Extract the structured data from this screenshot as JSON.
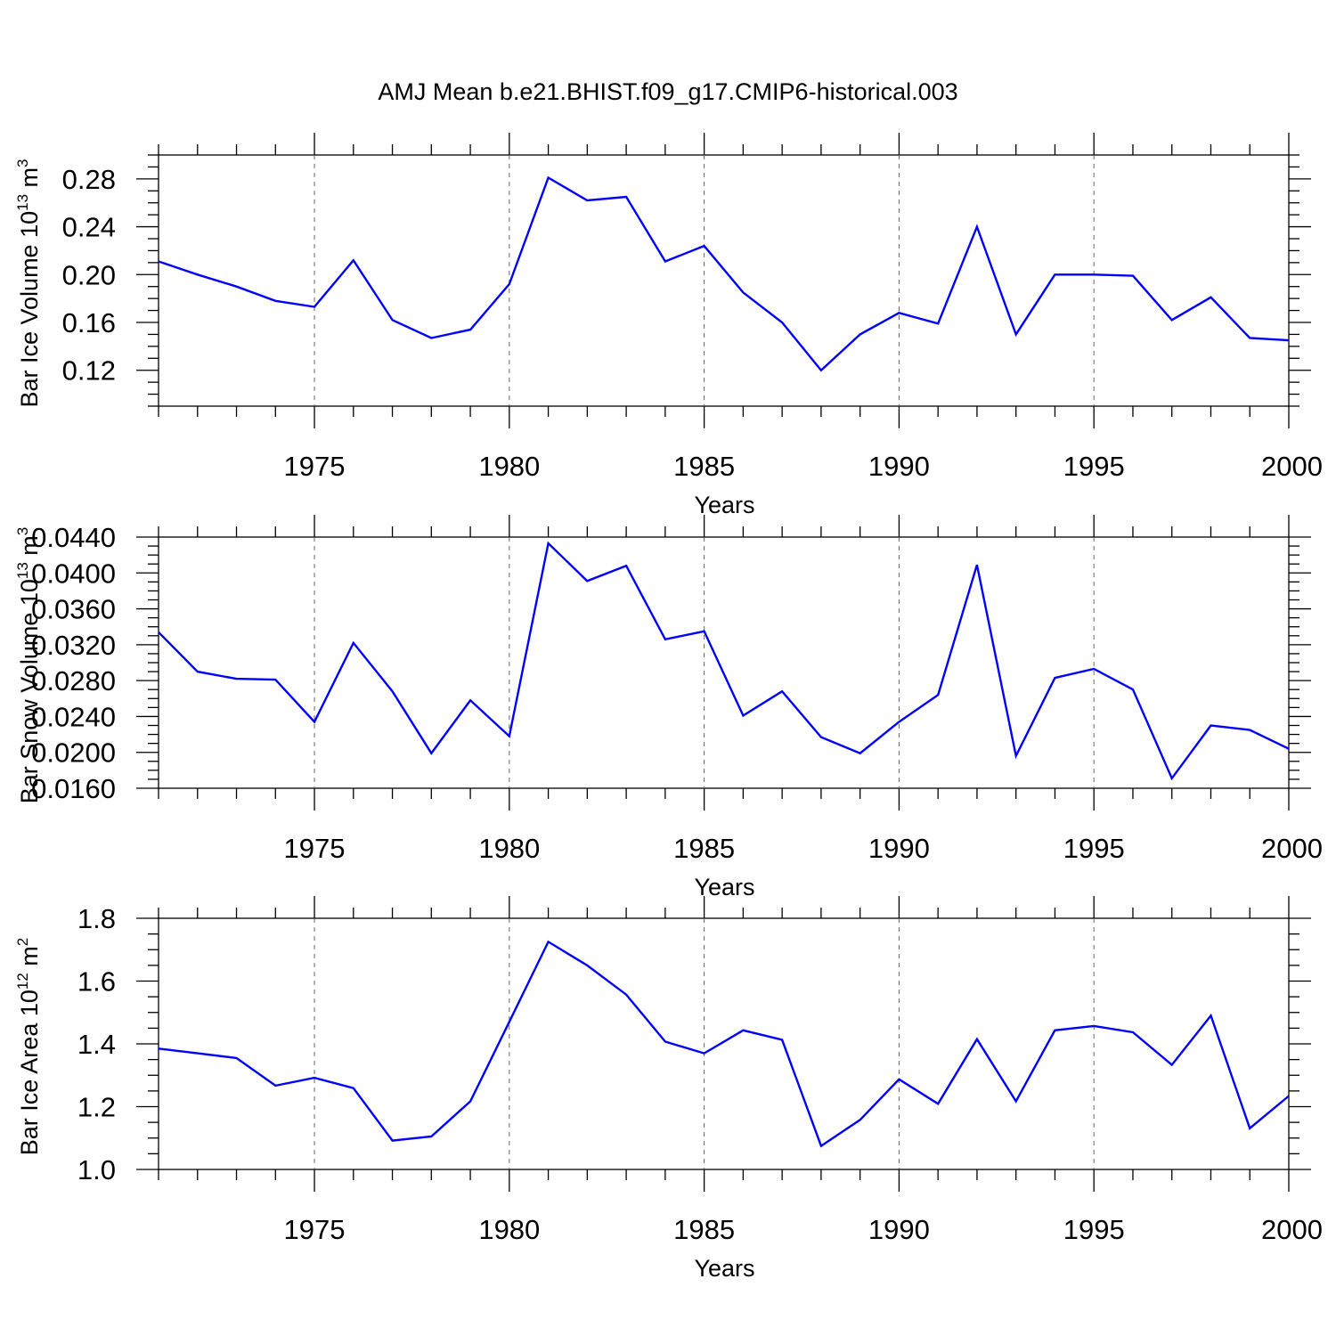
{
  "title": "AMJ Mean b.e21.BHIST.f09_g17.CMIP6-historical.003",
  "chart_data": [
    {
      "type": "line",
      "title": "",
      "xlabel": "Years",
      "ylabel": "Bar Ice Volume 10",
      "ylabel_exp": "13",
      "ylabel_unit": "m",
      "ylabel_unit_exp": "3",
      "xlim": [
        1971,
        2000
      ],
      "ylim": [
        0.09,
        0.3
      ],
      "xticks": [
        1975,
        1980,
        1985,
        1990,
        1995,
        2000
      ],
      "xtick_labels": [
        "1975",
        "1980",
        "1985",
        "1990",
        "1995",
        "2000"
      ],
      "yticks": [
        0.12,
        0.16,
        0.2,
        0.24,
        0.28
      ],
      "ytick_labels": [
        "0.12",
        "0.16",
        "0.20",
        "0.24",
        "0.28"
      ],
      "series": [
        {
          "name": "Bar Ice Volume",
          "color": "#0000ff",
          "x": [
            1971,
            1972,
            1973,
            1974,
            1975,
            1976,
            1977,
            1978,
            1979,
            1980,
            1981,
            1982,
            1983,
            1984,
            1985,
            1986,
            1987,
            1988,
            1989,
            1990,
            1991,
            1992,
            1993,
            1994,
            1995,
            1996,
            1997,
            1998,
            1999,
            2000
          ],
          "values": [
            0.211,
            0.2,
            0.19,
            0.178,
            0.173,
            0.212,
            0.162,
            0.147,
            0.154,
            0.192,
            0.281,
            0.262,
            0.265,
            0.211,
            0.224,
            0.185,
            0.16,
            0.12,
            0.15,
            0.168,
            0.159,
            0.24,
            0.15,
            0.2,
            0.2,
            0.199,
            0.162,
            0.181,
            0.147,
            0.145
          ]
        }
      ]
    },
    {
      "type": "line",
      "title": "",
      "xlabel": "Years",
      "ylabel": "Bar Snow Volume 10",
      "ylabel_exp": "13",
      "ylabel_unit": "m",
      "ylabel_unit_exp": "3",
      "xlim": [
        1971,
        2000
      ],
      "ylim": [
        0.016,
        0.044
      ],
      "xticks": [
        1975,
        1980,
        1985,
        1990,
        1995,
        2000
      ],
      "xtick_labels": [
        "1975",
        "1980",
        "1985",
        "1990",
        "1995",
        "2000"
      ],
      "yticks": [
        0.016,
        0.02,
        0.024,
        0.028,
        0.032,
        0.036,
        0.04,
        0.044
      ],
      "ytick_labels": [
        "0.0160",
        "0.0200",
        "0.0240",
        "0.0280",
        "0.0320",
        "0.0360",
        "0.0400",
        "0.0440"
      ],
      "series": [
        {
          "name": "Bar Snow Volume",
          "color": "#0000ff",
          "x": [
            1971,
            1972,
            1973,
            1974,
            1975,
            1976,
            1977,
            1978,
            1979,
            1980,
            1981,
            1982,
            1983,
            1984,
            1985,
            1986,
            1987,
            1988,
            1989,
            1990,
            1991,
            1992,
            1993,
            1994,
            1995,
            1996,
            1997,
            1998,
            1999,
            2000
          ],
          "values": [
            0.0334,
            0.029,
            0.0282,
            0.0281,
            0.0234,
            0.0322,
            0.0268,
            0.0199,
            0.0258,
            0.0218,
            0.0433,
            0.0391,
            0.0408,
            0.0326,
            0.0335,
            0.0241,
            0.0268,
            0.0217,
            0.0199,
            0.0234,
            0.0264,
            0.0409,
            0.0196,
            0.0283,
            0.0293,
            0.027,
            0.0171,
            0.023,
            0.0225,
            0.0204
          ]
        }
      ]
    },
    {
      "type": "line",
      "title": "",
      "xlabel": "Years",
      "ylabel": "Bar Ice Area 10",
      "ylabel_exp": "12",
      "ylabel_unit": "m",
      "ylabel_unit_exp": "2",
      "xlim": [
        1971,
        2000
      ],
      "ylim": [
        1.0,
        1.8
      ],
      "xticks": [
        1975,
        1980,
        1985,
        1990,
        1995,
        2000
      ],
      "xtick_labels": [
        "1975",
        "1980",
        "1985",
        "1990",
        "1995",
        "2000"
      ],
      "yticks": [
        1.0,
        1.2,
        1.4,
        1.6,
        1.8
      ],
      "ytick_labels": [
        "1.0",
        "1.2",
        "1.4",
        "1.6",
        "1.8"
      ],
      "series": [
        {
          "name": "Bar Ice Area",
          "color": "#0000ff",
          "x": [
            1971,
            1972,
            1973,
            1974,
            1975,
            1976,
            1977,
            1978,
            1979,
            1980,
            1981,
            1982,
            1983,
            1984,
            1985,
            1986,
            1987,
            1988,
            1989,
            1990,
            1991,
            1992,
            1993,
            1994,
            1995,
            1996,
            1997,
            1998,
            1999,
            2000
          ],
          "values": [
            1.385,
            1.37,
            1.355,
            1.267,
            1.292,
            1.259,
            1.092,
            1.105,
            1.217,
            1.47,
            1.725,
            1.65,
            1.557,
            1.407,
            1.37,
            1.443,
            1.413,
            1.075,
            1.158,
            1.287,
            1.209,
            1.415,
            1.217,
            1.443,
            1.457,
            1.437,
            1.333,
            1.49,
            1.131,
            1.234
          ]
        }
      ]
    }
  ]
}
